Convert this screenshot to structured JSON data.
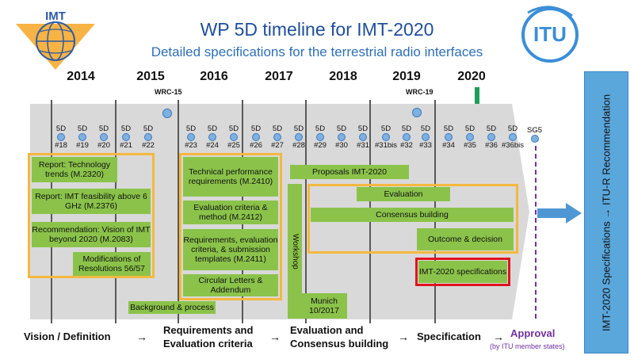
{
  "header": {
    "title": "WP 5D timeline for IMT-2020",
    "subtitle": "Detailed specifications for the terrestrial radio interfaces",
    "imt_logo_text": "IMT",
    "itu_logo_text": "ITU"
  },
  "years": [
    "2014",
    "2015",
    "2016",
    "2017",
    "2018",
    "2019",
    "2020"
  ],
  "conferences": {
    "wrc15": "WRC-15",
    "wrc19": "WRC-19"
  },
  "meetings": [
    {
      "top": "5D",
      "num": "#18"
    },
    {
      "top": "5D",
      "num": "#19"
    },
    {
      "top": "5D",
      "num": "#20"
    },
    {
      "top": "5D",
      "num": "#21"
    },
    {
      "top": "5D",
      "num": "#22"
    },
    {
      "top": "5D",
      "num": "#23"
    },
    {
      "top": "5D",
      "num": "#24"
    },
    {
      "top": "5D",
      "num": "#25"
    },
    {
      "top": "5D",
      "num": "#26"
    },
    {
      "top": "5D",
      "num": "#27"
    },
    {
      "top": "5D",
      "num": "#28"
    },
    {
      "top": "5D",
      "num": "#29"
    },
    {
      "top": "5D",
      "num": "#30"
    },
    {
      "top": "5D",
      "num": "#31"
    },
    {
      "top": "5D",
      "num": "#31bis"
    },
    {
      "top": "5D",
      "num": "#32"
    },
    {
      "top": "5D",
      "num": "#33"
    },
    {
      "top": "5D",
      "num": "#34"
    },
    {
      "top": "5D",
      "num": "#35"
    },
    {
      "top": "5D",
      "num": "#36"
    },
    {
      "top": "5D",
      "num": "#36bis"
    }
  ],
  "sg5_label": "SG5",
  "vision_boxes": [
    "Report: Technology trends (M.2320)",
    "Report: IMT feasibility  above 6 GHz (M.2376)",
    "Recommendation: Vision of IMT beyond 2020 (M.2083)",
    "Modifications of Resolutions 56/57"
  ],
  "background_label": "Background & process",
  "requirements_boxes": [
    "Technical performance requirements (M.2410)",
    "Evaluation criteria & method (M.2412)",
    "Requirements, evaluation criteria, & submission templates (M.2411)",
    "Circular Letters & Addendum"
  ],
  "proposals_label": "Proposals IMT-2020",
  "workshop_label": "Workshop",
  "munich_label": "Munich 10/2017",
  "evaluation_boxes": [
    "Evaluation",
    "Consensus building",
    "Outcome & decision"
  ],
  "spec_label": "IMT-2020 specifications",
  "right_label": "IMT-2020 Specifications → ITU-R  Recommendation",
  "bottom": {
    "vision": "Vision / Definition",
    "requirements_line1": "Requirements and",
    "requirements_line2": "Evaluation criteria",
    "evaluation_line1": "Evaluation and",
    "evaluation_line2": "Consensus building",
    "specification": "Specification",
    "approval": "Approval",
    "approval_note": "(by ITU member states)",
    "arrow": "→"
  },
  "colors": {
    "title": "#1f4e9c",
    "green_box": "#8bc34a",
    "orange_border": "#f4b83f",
    "red_border": "#e0141e",
    "band": "#d9d9d9",
    "approval": "#7030a0",
    "right_panel": "#5aa7dc",
    "green_arrow": "#1f9e5a"
  }
}
